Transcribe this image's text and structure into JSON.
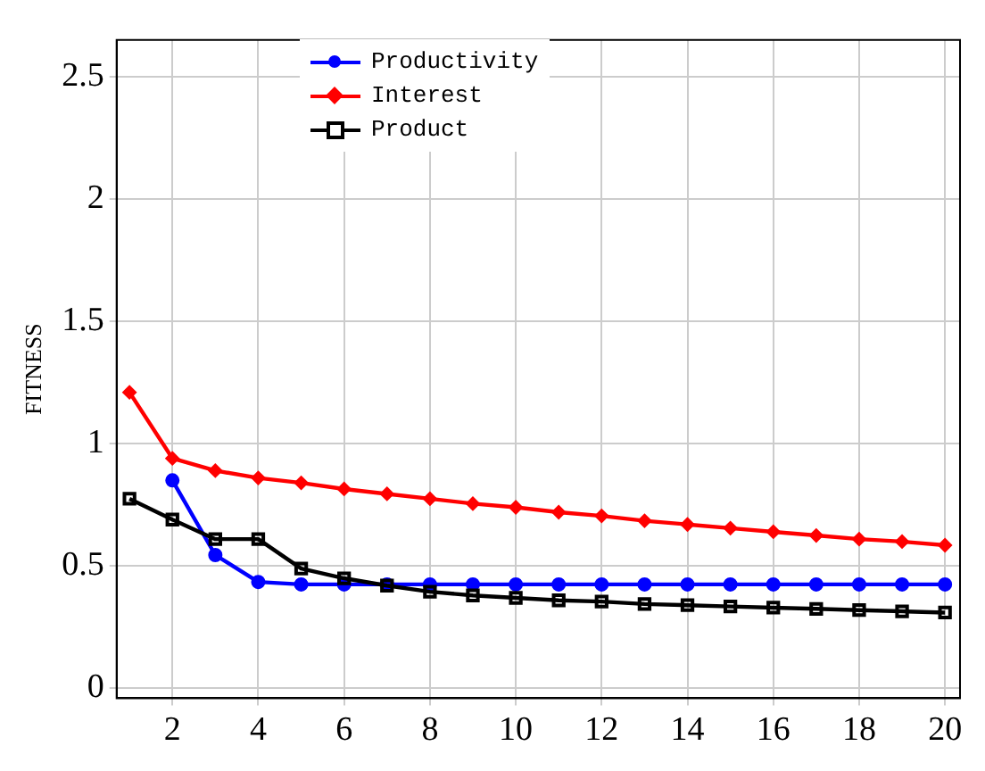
{
  "chart_data": {
    "type": "line",
    "ylabel": "FITNESS",
    "x": [
      1,
      2,
      3,
      4,
      5,
      6,
      7,
      8,
      9,
      10,
      11,
      12,
      13,
      14,
      15,
      16,
      17,
      18,
      19,
      20
    ],
    "series": [
      {
        "name": "Productivity",
        "color": "#0000ff",
        "marker": "circle",
        "values": [
          null,
          0.85,
          0.545,
          0.435,
          0.425,
          0.425,
          0.425,
          0.425,
          0.425,
          0.425,
          0.425,
          0.425,
          0.425,
          0.425,
          0.425,
          0.425,
          0.425,
          0.425,
          0.425,
          0.425
        ]
      },
      {
        "name": "Interest",
        "color": "#ff0000",
        "marker": "diamond",
        "values": [
          1.21,
          0.94,
          0.89,
          0.86,
          0.84,
          0.815,
          0.795,
          0.775,
          0.755,
          0.74,
          0.72,
          0.705,
          0.685,
          0.67,
          0.655,
          0.64,
          0.625,
          0.61,
          0.6,
          0.585
        ]
      },
      {
        "name": "Product",
        "color": "#000000",
        "marker": "square",
        "values": [
          0.775,
          0.69,
          0.61,
          0.61,
          0.49,
          0.45,
          0.42,
          0.395,
          0.38,
          0.37,
          0.36,
          0.355,
          0.345,
          0.34,
          0.335,
          0.33,
          0.325,
          0.32,
          0.315,
          0.31
        ]
      }
    ],
    "xlim": [
      0.7,
      20.35
    ],
    "xticks": [
      2,
      4,
      6,
      8,
      10,
      12,
      14,
      16,
      18,
      20
    ],
    "ylim": [
      -0.04,
      2.65
    ],
    "yticks": [
      0,
      0.5,
      1,
      1.5,
      2,
      2.5
    ],
    "grid": true,
    "legend": "top",
    "line_style": "solid"
  }
}
